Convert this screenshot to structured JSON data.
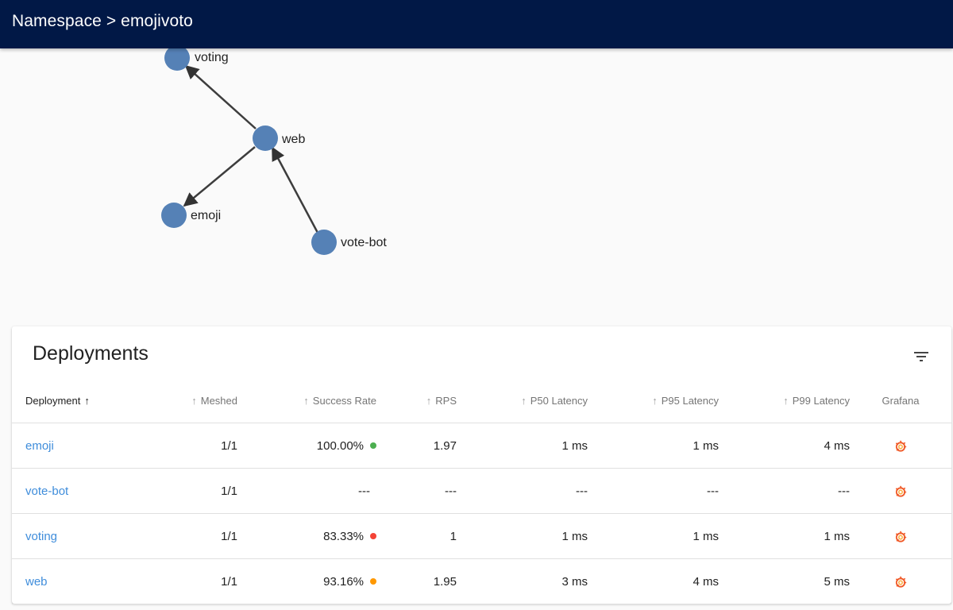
{
  "header": {
    "breadcrumb": "Namespace > emojivoto"
  },
  "graph": {
    "nodes": [
      {
        "name": "voting"
      },
      {
        "name": "web"
      },
      {
        "name": "emoji"
      },
      {
        "name": "vote-bot"
      }
    ],
    "node_color": "#5581b6",
    "edges": [
      {
        "from": "web",
        "to": "voting"
      },
      {
        "from": "web",
        "to": "emoji"
      },
      {
        "from": "vote-bot",
        "to": "web"
      }
    ]
  },
  "deployments": {
    "title": "Deployments",
    "columns": {
      "deployment": "Deployment",
      "meshed": "Meshed",
      "success_rate": "Success Rate",
      "rps": "RPS",
      "p50": "P50 Latency",
      "p95": "P95 Latency",
      "p99": "P99 Latency",
      "grafana": "Grafana"
    },
    "rows": [
      {
        "name": "emoji",
        "meshed": "1/1",
        "success_rate": "100.00%",
        "status_color": "#4caf50",
        "rps": "1.97",
        "p50": "1 ms",
        "p95": "1 ms",
        "p99": "4 ms"
      },
      {
        "name": "vote-bot",
        "meshed": "1/1",
        "success_rate": "---",
        "status_color": "",
        "rps": "---",
        "p50": "---",
        "p95": "---",
        "p99": "---"
      },
      {
        "name": "voting",
        "meshed": "1/1",
        "success_rate": "83.33%",
        "status_color": "#f44336",
        "rps": "1",
        "p50": "1 ms",
        "p95": "1 ms",
        "p99": "1 ms"
      },
      {
        "name": "web",
        "meshed": "1/1",
        "success_rate": "93.16%",
        "status_color": "#ff9800",
        "rps": "1.95",
        "p50": "3 ms",
        "p95": "4 ms",
        "p99": "5 ms"
      }
    ],
    "grafana_icon": "grafana-icon"
  }
}
